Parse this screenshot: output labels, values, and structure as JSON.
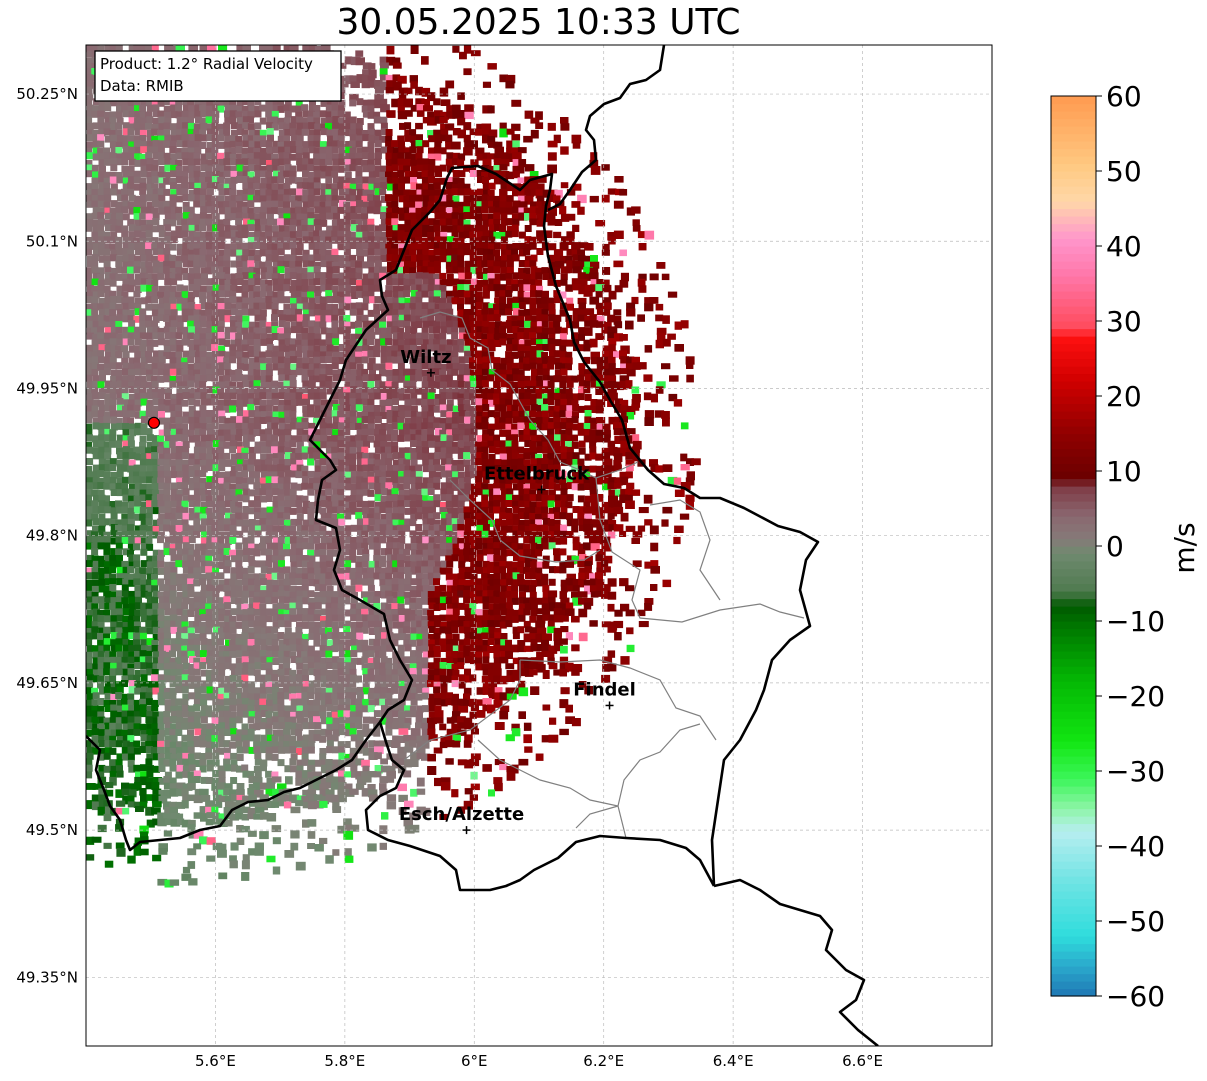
{
  "title": "30.05.2025 10:33 UTC",
  "info": {
    "product": "Product: 1.2° Radial Velocity",
    "data": "Data: RMIB"
  },
  "map": {
    "lon_range": [
      5.4,
      6.8
    ],
    "lat_range": [
      49.28,
      50.3
    ],
    "lat_ticks": [
      {
        "value": 50.25,
        "label": "50.25°N"
      },
      {
        "value": 50.1,
        "label": "50.1°N"
      },
      {
        "value": 49.95,
        "label": "49.95°N"
      },
      {
        "value": 49.8,
        "label": "49.8°N"
      },
      {
        "value": 49.65,
        "label": "49.65°N"
      },
      {
        "value": 49.5,
        "label": "49.5°N"
      },
      {
        "value": 49.35,
        "label": "49.35°N"
      }
    ],
    "lon_ticks": [
      {
        "value": 5.6,
        "label": "5.6°E"
      },
      {
        "value": 5.8,
        "label": "5.8°E"
      },
      {
        "value": 6.0,
        "label": "6°E"
      },
      {
        "value": 6.2,
        "label": "6.2°E"
      },
      {
        "value": 6.4,
        "label": "6.4°E"
      },
      {
        "value": 6.6,
        "label": "6.6°E"
      }
    ],
    "radar_site": {
      "lon": 5.505,
      "lat": 49.915
    },
    "cities": [
      {
        "name": "Wiltz",
        "lon": 5.933,
        "lat": 49.966
      },
      {
        "name": "Ettelbruck",
        "lon": 6.104,
        "lat": 49.847
      },
      {
        "name": "Findel",
        "lon": 6.209,
        "lat": 49.627
      },
      {
        "name": "Esch/Alzette",
        "lon": 5.988,
        "lat": 49.5
      }
    ]
  },
  "colorbar": {
    "label": "m/s",
    "min": -60,
    "max": 60,
    "ticks": [
      {
        "value": 60,
        "label": "60"
      },
      {
        "value": 50,
        "label": "50"
      },
      {
        "value": 40,
        "label": "40"
      },
      {
        "value": 30,
        "label": "30"
      },
      {
        "value": 20,
        "label": "20"
      },
      {
        "value": 10,
        "label": "10"
      },
      {
        "value": 0,
        "label": "0"
      },
      {
        "value": -10,
        "label": "−10"
      },
      {
        "value": -20,
        "label": "−20"
      },
      {
        "value": -30,
        "label": "−30"
      },
      {
        "value": -40,
        "label": "−40"
      },
      {
        "value": -50,
        "label": "−50"
      },
      {
        "value": -60,
        "label": "−60"
      }
    ],
    "stops": [
      {
        "v": -60,
        "c": "#1f77b4"
      },
      {
        "v": -56,
        "c": "#2aa9cc"
      },
      {
        "v": -52,
        "c": "#2fdcdc"
      },
      {
        "v": -45,
        "c": "#6ce3e3"
      },
      {
        "v": -38,
        "c": "#b7eef0"
      },
      {
        "v": -35,
        "c": "#8ef5a8"
      },
      {
        "v": -31,
        "c": "#3cf55a"
      },
      {
        "v": -26,
        "c": "#12e612"
      },
      {
        "v": -18,
        "c": "#04b804"
      },
      {
        "v": -11,
        "c": "#007a00"
      },
      {
        "v": -8,
        "c": "#005a00"
      },
      {
        "v": -6,
        "c": "#4f7a4f"
      },
      {
        "v": -1,
        "c": "#6f8a6f"
      },
      {
        "v": 1,
        "c": "#857a78"
      },
      {
        "v": 4,
        "c": "#8a6870"
      },
      {
        "v": 8,
        "c": "#7e3a44"
      },
      {
        "v": 9,
        "c": "#6a0000"
      },
      {
        "v": 15,
        "c": "#900000"
      },
      {
        "v": 22,
        "c": "#d00000"
      },
      {
        "v": 28,
        "c": "#ff1010"
      },
      {
        "v": 29,
        "c": "#ff4a5a"
      },
      {
        "v": 36,
        "c": "#ff76a8"
      },
      {
        "v": 41,
        "c": "#ff96cc"
      },
      {
        "v": 46,
        "c": "#ffd8a8"
      },
      {
        "v": 51,
        "c": "#ffc880"
      },
      {
        "v": 60,
        "c": "#ff9a50"
      }
    ]
  },
  "colors": {
    "border": "#000000",
    "canton_border": "#808080",
    "grid": "#bbbbbb",
    "radar_site": "#ff0000"
  }
}
